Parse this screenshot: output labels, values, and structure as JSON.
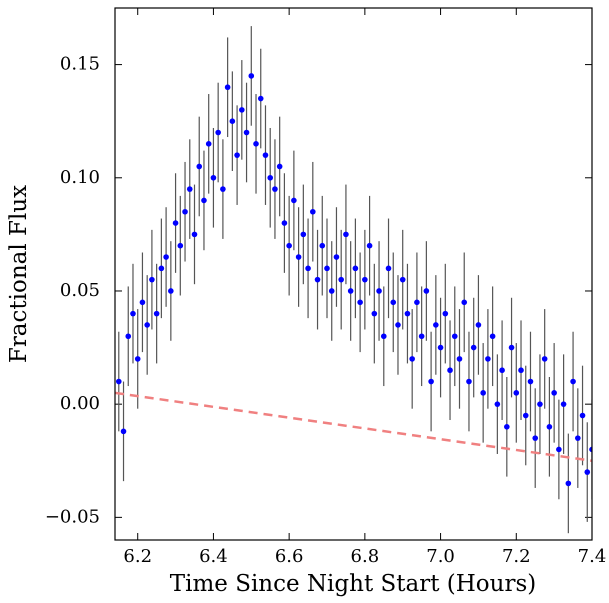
{
  "chart_data": {
    "type": "scatter",
    "xlabel": "Time Since Night Start (Hours)",
    "ylabel": "Fractional Flux",
    "xlim": [
      6.14,
      7.4
    ],
    "ylim": [
      -0.06,
      0.175
    ],
    "xticks": [
      6.2,
      6.4,
      6.6,
      6.8,
      {
        "value": 7.0,
        "label": "7.0"
      },
      7.2,
      7.4
    ],
    "yticks": [
      {
        "value": -0.05,
        "label": "−0.05"
      },
      {
        "value": 0,
        "label": "0.00"
      },
      0.05,
      {
        "value": 0.1,
        "label": "0.10"
      },
      0.15
    ],
    "series": [
      {
        "kind": "errorbar",
        "color": "#0000ff",
        "error_color": "#555555",
        "yerr": 0.022,
        "x": [
          6.15,
          6.1625,
          6.175,
          6.1875,
          6.2,
          6.2125,
          6.225,
          6.2375,
          6.25,
          6.2625,
          6.275,
          6.2875,
          6.3,
          6.3125,
          6.325,
          6.3375,
          6.35,
          6.3625,
          6.375,
          6.3875,
          6.4,
          6.4125,
          6.425,
          6.4375,
          6.45,
          6.4625,
          6.475,
          6.4875,
          6.5,
          6.5125,
          6.525,
          6.5375,
          6.55,
          6.5625,
          6.575,
          6.5875,
          6.6,
          6.6125,
          6.625,
          6.6375,
          6.65,
          6.6625,
          6.675,
          6.6875,
          6.7,
          6.7125,
          6.725,
          6.7375,
          6.75,
          6.7625,
          6.775,
          6.7875,
          6.8,
          6.8125,
          6.825,
          6.8375,
          6.85,
          6.8625,
          6.875,
          6.8875,
          6.9,
          6.9125,
          6.925,
          6.9375,
          6.95,
          6.9625,
          6.975,
          6.9875,
          7.0,
          7.0125,
          7.025,
          7.0375,
          7.05,
          7.0625,
          7.075,
          7.0875,
          7.1,
          7.1125,
          7.125,
          7.1375,
          7.15,
          7.1625,
          7.175,
          7.1875,
          7.2,
          7.2125,
          7.225,
          7.2375,
          7.25,
          7.2625,
          7.275,
          7.2875,
          7.3,
          7.3125,
          7.325,
          7.3375,
          7.35,
          7.3625,
          7.375,
          7.3875,
          7.4
        ],
        "values": [
          0.01,
          -0.012,
          0.03,
          0.04,
          0.02,
          0.045,
          0.035,
          0.055,
          0.04,
          0.06,
          0.065,
          0.05,
          0.08,
          0.07,
          0.085,
          0.095,
          0.075,
          0.105,
          0.09,
          0.115,
          0.1,
          0.12,
          0.095,
          0.14,
          0.125,
          0.11,
          0.13,
          0.12,
          0.145,
          0.115,
          0.135,
          0.11,
          0.1,
          0.095,
          0.105,
          0.08,
          0.07,
          0.09,
          0.065,
          0.075,
          0.06,
          0.085,
          0.055,
          0.07,
          0.06,
          0.05,
          0.065,
          0.055,
          0.075,
          0.05,
          0.06,
          0.045,
          0.055,
          0.07,
          0.04,
          0.05,
          0.03,
          0.06,
          0.045,
          0.035,
          0.055,
          0.04,
          0.02,
          0.045,
          0.03,
          0.05,
          0.01,
          0.035,
          0.025,
          0.04,
          0.015,
          0.03,
          0.02,
          0.045,
          0.01,
          0.025,
          0.035,
          0.005,
          0.02,
          0.03,
          0.0,
          0.015,
          -0.01,
          0.025,
          0.005,
          0.015,
          -0.005,
          0.01,
          -0.015,
          0.0,
          0.02,
          -0.01,
          0.005,
          -0.02,
          0.0,
          -0.035,
          0.01,
          -0.015,
          -0.005,
          -0.03,
          -0.02
        ]
      },
      {
        "kind": "line",
        "color": "#f08080",
        "dashed": true,
        "x": [
          6.14,
          7.4
        ],
        "values": [
          0.005,
          -0.025
        ]
      }
    ]
  }
}
